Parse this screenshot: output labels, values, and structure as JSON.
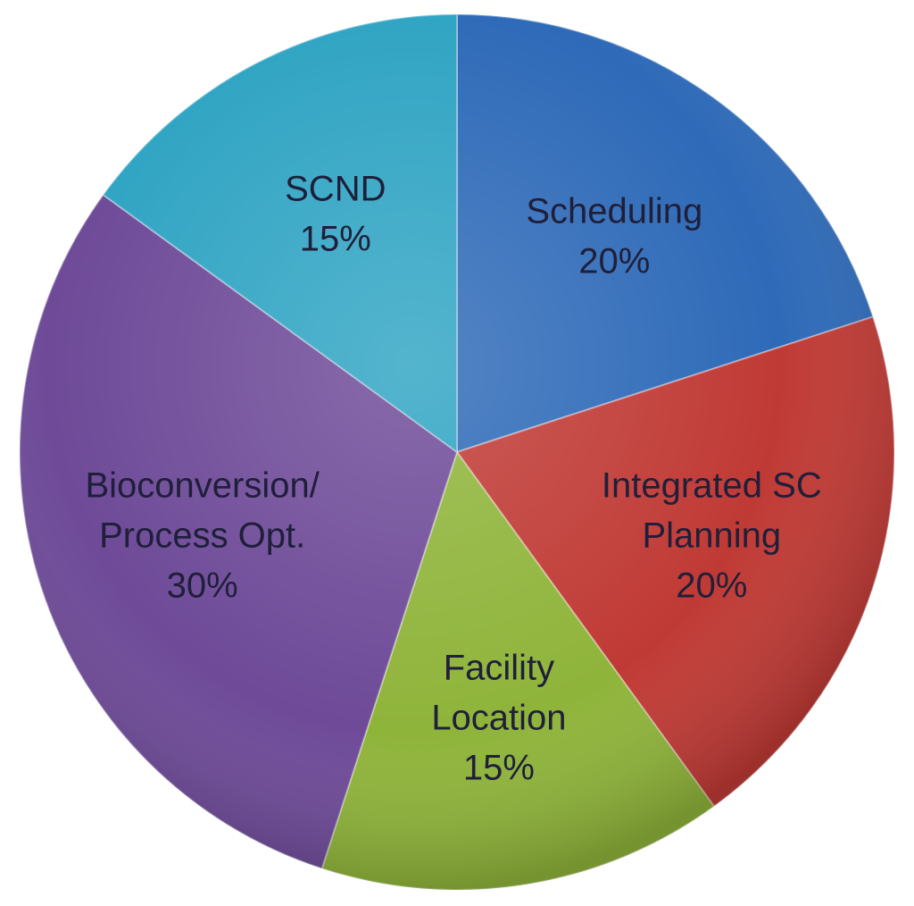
{
  "chart_data": {
    "type": "pie",
    "slices": [
      {
        "label_lines": [
          "Scheduling"
        ],
        "value_label": "20%",
        "value": 20,
        "color": "#2e6ab8"
      },
      {
        "label_lines": [
          "Integrated SC",
          "Planning"
        ],
        "value_label": "20%",
        "value": 20,
        "color": "#c03a35"
      },
      {
        "label_lines": [
          "Facility",
          "Location"
        ],
        "value_label": "15%",
        "value": 15,
        "color": "#8fb43a"
      },
      {
        "label_lines": [
          "Bioconversion/",
          "Process Opt."
        ],
        "value_label": "30%",
        "value": 30,
        "color": "#6e4a98"
      },
      {
        "label_lines": [
          "SCND"
        ],
        "value_label": "15%",
        "value": 15,
        "color": "#2fa4c3"
      }
    ],
    "start_angle": "12 o'clock",
    "direction": "clockwise",
    "legend": "none"
  }
}
